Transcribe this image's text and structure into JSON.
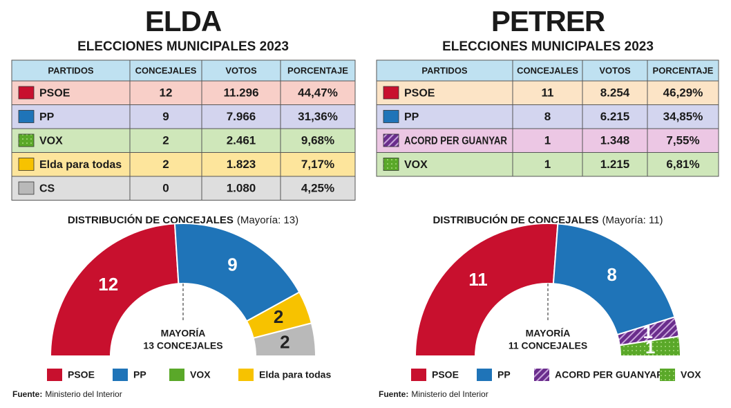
{
  "panels": [
    {
      "title": "ELDA",
      "subtitle": "ELECCIONES MUNICIPALES 2023",
      "table": {
        "header": [
          "PARTIDOS",
          "CONCEJALES",
          "VOTOS",
          "PORCENTAJE"
        ],
        "rows": [
          [
            "PSOE",
            "12",
            "11.296",
            "44,47%"
          ],
          [
            "PP",
            "9",
            "7.966",
            "31,36%"
          ],
          [
            "VOX",
            "2",
            "2.461",
            "9,68%"
          ],
          [
            "Elda para todas",
            "2",
            "1.823",
            "7,17%"
          ],
          [
            "CS",
            "0",
            "1.080",
            "4,25%"
          ]
        ],
        "row_fills": [
          "#f8cfc8",
          "#d3d4ee",
          "#cfe7ba",
          "#fde59c",
          "#dedede"
        ],
        "swatches": [
          {
            "color": "#c8102e"
          },
          {
            "color": "#1f74b8"
          },
          {
            "color": "#5aa829",
            "pattern": "dots"
          },
          {
            "color": "#f7c200"
          },
          {
            "color": "#b9b9b9"
          }
        ]
      },
      "source": {
        "label": "Fuente:",
        "text": "Ministerio del Interior"
      }
    },
    {
      "title": "PETRER",
      "subtitle": "ELECCIONES MUNICIPALES 2023",
      "table": {
        "header": [
          "PARTIDOS",
          "CONCEJALES",
          "VOTOS",
          "PORCENTAJE"
        ],
        "rows": [
          [
            "PSOE",
            "11",
            "8.254",
            "46,29%"
          ],
          [
            "PP",
            "8",
            "6.215",
            "34,85%"
          ],
          [
            "ACORD PER GUANYAR",
            "1",
            "1.348",
            "7,55%"
          ],
          [
            "VOX",
            "1",
            "1.215",
            "6,81%"
          ]
        ],
        "row_fills": [
          "#fce4c6",
          "#d3d5ef",
          "#ecc7e4",
          "#cfe7ba"
        ],
        "swatches": [
          {
            "color": "#c8102e"
          },
          {
            "color": "#1f74b8"
          },
          {
            "color": "#6a2d8c",
            "pattern": "hatch"
          },
          {
            "color": "#5aa829",
            "pattern": "dots"
          }
        ]
      },
      "source": {
        "label": "Fuente:",
        "text": "Ministerio del Interior"
      }
    }
  ],
  "chart_data": [
    {
      "type": "half-donut",
      "title": "DISTRIBUCIÓN DE CONCEJALES",
      "subtitle": "(Mayoría: 13)",
      "values": [
        12,
        9,
        2,
        2
      ],
      "colors": [
        "#c8102e",
        "#1f74b8",
        "#f7c200",
        "#b9b9b9"
      ],
      "patterns": [
        null,
        null,
        null,
        null
      ],
      "label_colors": [
        "#ffffff",
        "#ffffff",
        "#222222",
        "#222222"
      ],
      "annotation": [
        "MAYORÍA",
        "13 CONCEJALES"
      ],
      "legend": [
        {
          "name": "PSOE",
          "color": "#c8102e"
        },
        {
          "name": "PP",
          "color": "#1f74b8"
        },
        {
          "name": "VOX",
          "color": "#5aa829"
        },
        {
          "name": "Elda para todas",
          "color": "#f7c200"
        }
      ]
    },
    {
      "type": "half-donut",
      "title": "DISTRIBUCIÓN DE CONCEJALES",
      "subtitle": "(Mayoría: 11)",
      "values": [
        11,
        8,
        1,
        1
      ],
      "colors": [
        "#c8102e",
        "#1f74b8",
        "#6a2d8c",
        "#5aa829"
      ],
      "patterns": [
        null,
        null,
        "hatch",
        "dots"
      ],
      "label_colors": [
        "#ffffff",
        "#ffffff",
        "#ffffff",
        "#ffffff"
      ],
      "annotation": [
        "MAYORÍA",
        "11 CONCEJALES"
      ],
      "legend": [
        {
          "name": "PSOE",
          "color": "#c8102e"
        },
        {
          "name": "PP",
          "color": "#1f74b8"
        },
        {
          "name": "ACORD PER GUANYAR",
          "color": "#6a2d8c",
          "pattern": "hatch"
        },
        {
          "name": "VOX",
          "color": "#5aa829",
          "pattern": "dots"
        }
      ]
    }
  ]
}
